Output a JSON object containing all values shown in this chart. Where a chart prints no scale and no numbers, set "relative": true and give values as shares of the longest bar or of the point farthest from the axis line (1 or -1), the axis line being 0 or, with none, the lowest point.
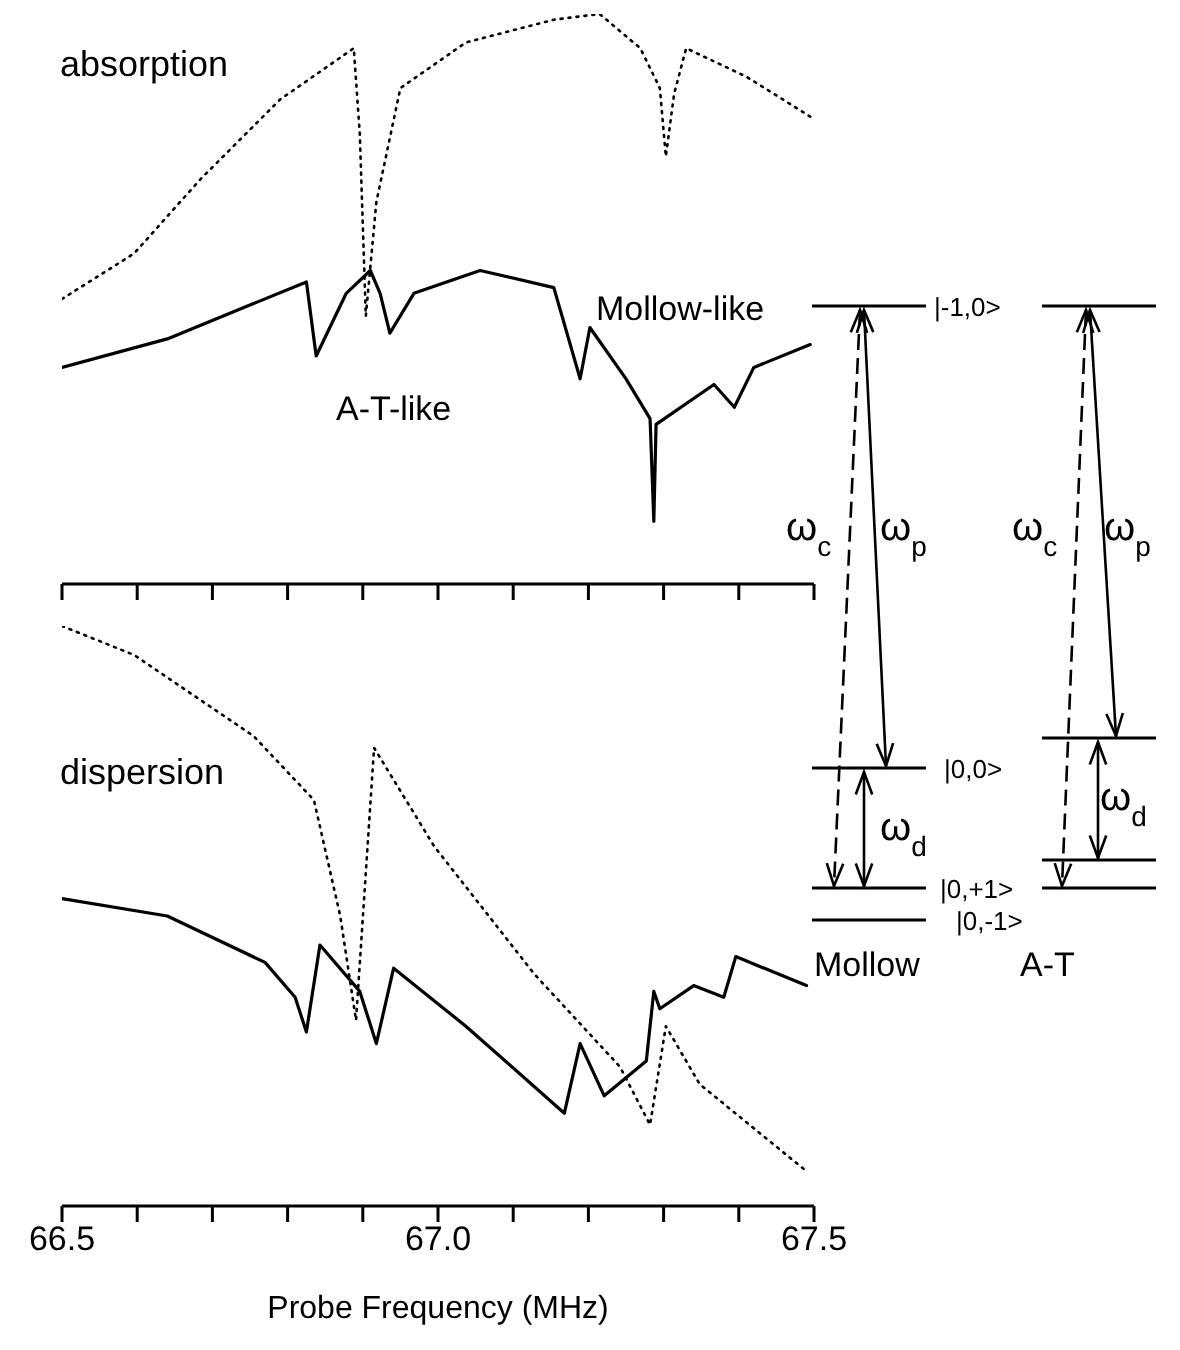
{
  "chart_data": [
    {
      "type": "line",
      "relative": true,
      "xlim": [
        66.5,
        67.5
      ],
      "xticks": [
        {
          "value": 66.5,
          "label": null
        },
        {
          "value": 66.6,
          "label": null
        },
        {
          "value": 66.7,
          "label": null
        },
        {
          "value": 66.8,
          "label": null
        },
        {
          "value": 66.9,
          "label": null
        },
        {
          "value": 67.0,
          "label": null
        },
        {
          "value": 67.1,
          "label": null
        },
        {
          "value": 67.2,
          "label": null
        },
        {
          "value": 67.3,
          "label": null
        },
        {
          "value": 67.4,
          "label": null
        },
        {
          "value": 67.5,
          "label": null
        }
      ],
      "tick_labels": false,
      "annotations": [
        "absorption",
        "A-T-like",
        "Mollow-like",
        "|-1,0>",
        "|0,0>",
        "|0,+1>",
        "|0,-1>",
        "ω$_{c}$",
        "ω$_{p}$",
        "ω$_{d}$",
        "Mollow",
        "ω$_{c}$",
        "ω$_{p}$",
        "ω$_{d}$",
        "A-T"
      ],
      "series": [
        {
          "color": "#000000",
          "line_style": "dotted",
          "x": [
            66.5,
            66.596,
            66.684,
            66.79,
            66.888,
            66.896,
            66.904,
            66.918,
            66.95,
            67.037,
            67.154,
            67.215,
            67.269,
            67.295,
            67.303,
            67.314,
            67.33,
            67.41,
            67.495
          ],
          "values": [
            0.5,
            0.58,
            0.71,
            0.85,
            0.94,
            0.79,
            0.47,
            0.67,
            0.87,
            0.95,
            0.99,
            1.0,
            0.94,
            0.87,
            0.75,
            0.86,
            0.94,
            0.89,
            0.82
          ]
        },
        {
          "color": "#000000",
          "line_style": "solid",
          "x": [
            66.5,
            66.64,
            66.825,
            66.838,
            66.878,
            66.91,
            66.923,
            66.936,
            66.968,
            67.056,
            67.154,
            67.189,
            67.202,
            67.25,
            67.282,
            67.287,
            67.29,
            67.367,
            67.394,
            67.42,
            67.495
          ],
          "values": [
            0.38,
            0.43,
            0.53,
            0.4,
            0.51,
            0.55,
            0.51,
            0.44,
            0.51,
            0.55,
            0.52,
            0.36,
            0.45,
            0.36,
            0.29,
            0.11,
            0.28,
            0.35,
            0.31,
            0.38,
            0.42
          ]
        }
      ]
    },
    {
      "type": "line",
      "relative": true,
      "xlabel": "Probe Frequency (MHz)",
      "xlim": [
        66.5,
        67.5
      ],
      "xticks": [
        66.5,
        {
          "value": 66.6,
          "label": null
        },
        {
          "value": 66.7,
          "label": null
        },
        {
          "value": 66.8,
          "label": null
        },
        {
          "value": 66.9,
          "label": null
        },
        {
          "value": 67.0,
          "label": "67.0"
        },
        {
          "value": 67.1,
          "label": null
        },
        {
          "value": 67.2,
          "label": null
        },
        {
          "value": 67.3,
          "label": null
        },
        {
          "value": 67.4,
          "label": null
        },
        67.5
      ],
      "annotations": [
        "dispersion"
      ],
      "series": [
        {
          "color": "#000000",
          "line_style": "dotted",
          "x": [
            66.5,
            66.596,
            66.755,
            66.835,
            66.87,
            66.891,
            66.915,
            66.995,
            67.128,
            67.242,
            67.282,
            67.303,
            67.348,
            67.49
          ],
          "values": [
            1.0,
            0.95,
            0.81,
            0.7,
            0.5,
            0.32,
            0.79,
            0.62,
            0.4,
            0.24,
            0.14,
            0.31,
            0.21,
            0.06
          ]
        },
        {
          "color": "#000000",
          "line_style": "solid",
          "x": [
            66.5,
            66.64,
            66.77,
            66.81,
            66.825,
            66.843,
            66.896,
            66.918,
            66.941,
            67.037,
            67.168,
            67.189,
            67.221,
            67.277,
            67.287,
            67.295,
            67.34,
            67.38,
            67.396,
            67.49
          ],
          "values": [
            0.53,
            0.5,
            0.42,
            0.36,
            0.3,
            0.45,
            0.37,
            0.28,
            0.41,
            0.31,
            0.16,
            0.28,
            0.19,
            0.25,
            0.37,
            0.34,
            0.38,
            0.36,
            0.43,
            0.38
          ]
        }
      ]
    }
  ]
}
